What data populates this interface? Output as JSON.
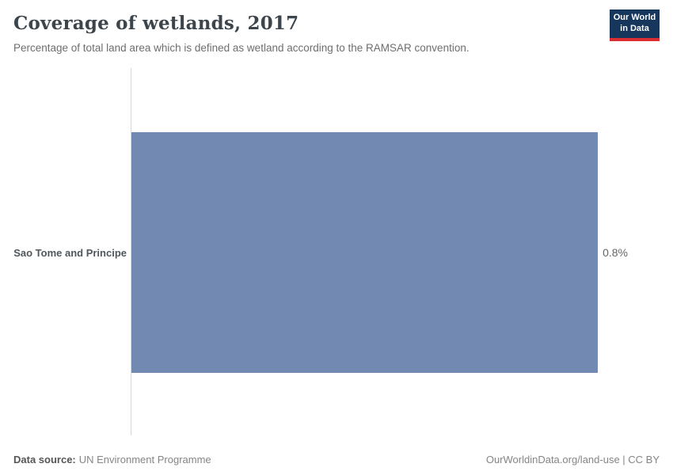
{
  "header": {
    "logo": {
      "line1": "Our World",
      "line2": "in Data"
    }
  },
  "chart_data": {
    "type": "bar",
    "orientation": "horizontal",
    "title": "Coverage of wetlands, 2017",
    "subtitle": "Percentage of total land area which is defined as wetland according to the RAMSAR convention.",
    "categories": [
      "Sao Tome and Principe"
    ],
    "values": [
      0.8
    ],
    "value_labels": [
      "0.8%"
    ],
    "xlabel": "",
    "ylabel": "",
    "xlim": [
      0,
      0.8
    ],
    "grid": false,
    "legend": "none",
    "bar_color": "#7289b1"
  },
  "footer": {
    "source_label": "Data source:",
    "source_value": "UN Environment Programme",
    "attribution": "OurWorldinData.org/land-use | CC BY"
  }
}
